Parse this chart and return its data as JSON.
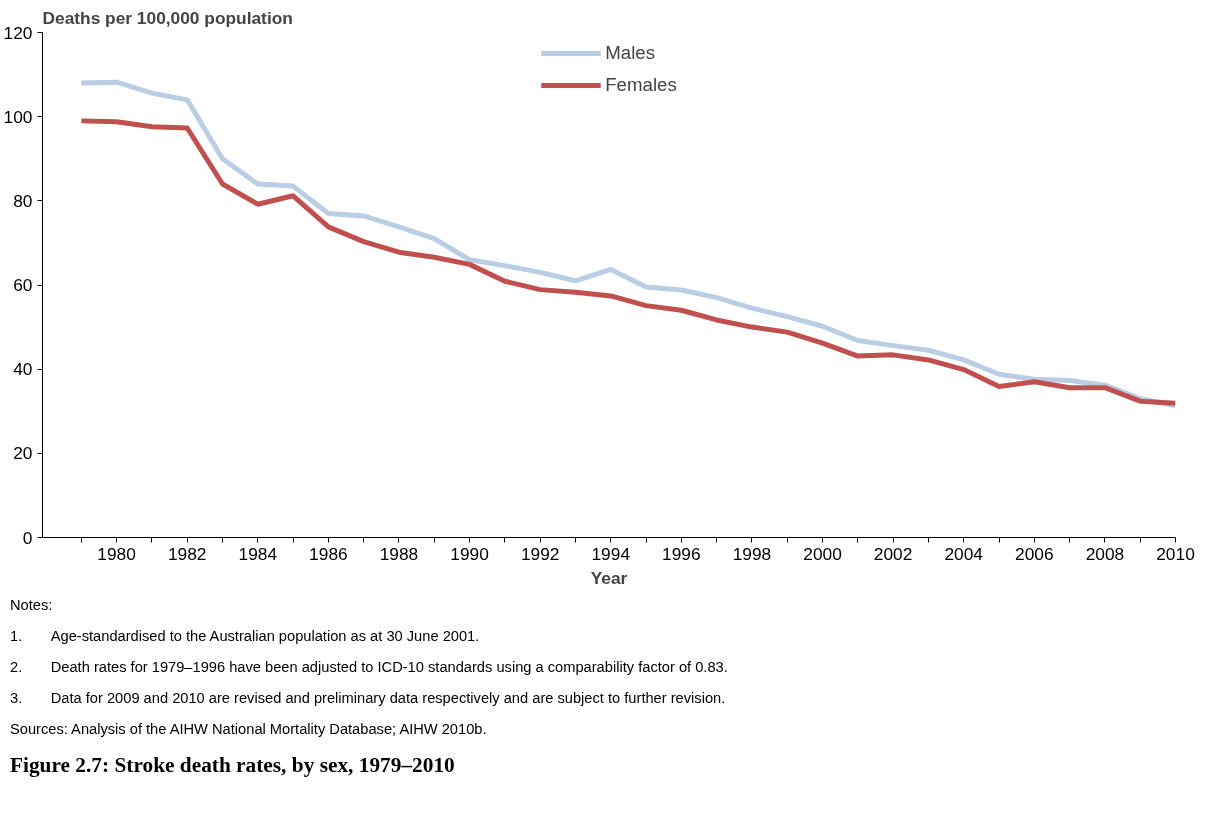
{
  "chart_data": {
    "type": "line",
    "title": "Figure 2.7: Stroke death rates, by sex, 1979–2010",
    "xlabel": "Year",
    "ylabel": "Deaths per 100,000 population",
    "x": [
      1979,
      1980,
      1981,
      1982,
      1983,
      1984,
      1985,
      1986,
      1987,
      1988,
      1989,
      1990,
      1991,
      1992,
      1993,
      1994,
      1995,
      1996,
      1997,
      1998,
      1999,
      2000,
      2001,
      2002,
      2003,
      2004,
      2005,
      2006,
      2007,
      2008,
      2009,
      2010
    ],
    "series": [
      {
        "name": "Males",
        "color": "#b9cde5",
        "values": [
          108,
          108.2,
          105.6,
          104,
          90,
          84,
          83.5,
          77,
          76.4,
          73.8,
          71,
          66,
          64.6,
          63,
          61,
          63.7,
          59.5,
          58.8,
          57,
          54.5,
          52.5,
          50.2,
          46.8,
          45.6,
          44.5,
          42.2,
          38.8,
          37.6,
          37.3,
          36.2,
          33,
          31.3
        ]
      },
      {
        "name": "Females",
        "color": "#c0504d",
        "values": [
          99,
          98.8,
          97.6,
          97.3,
          84,
          79.2,
          81.2,
          73.8,
          70.3,
          67.8,
          66.6,
          64.9,
          60.9,
          58.9,
          58.3,
          57.4,
          55.1,
          54,
          51.7,
          50,
          48.8,
          46.2,
          43.1,
          43.4,
          42.2,
          39.9,
          35.9,
          37,
          35.6,
          35.6,
          32.4,
          31.9
        ]
      }
    ],
    "xlim": [
      1977.9,
      2010
    ],
    "xticks": [
      {
        "value": 1979,
        "label": null
      },
      1980,
      {
        "value": 1981,
        "label": null
      },
      1982,
      {
        "value": 1983,
        "label": null
      },
      1984,
      {
        "value": 1985,
        "label": null
      },
      1986,
      {
        "value": 1987,
        "label": null
      },
      1988,
      {
        "value": 1989,
        "label": null
      },
      1990,
      {
        "value": 1991,
        "label": null
      },
      1992,
      {
        "value": 1993,
        "label": null
      },
      1994,
      {
        "value": 1995,
        "label": null
      },
      1996,
      {
        "value": 1997,
        "label": null
      },
      1998,
      {
        "value": 1999,
        "label": null
      },
      2000,
      {
        "value": 2001,
        "label": null
      },
      2002,
      {
        "value": 2003,
        "label": null
      },
      2004,
      {
        "value": 2005,
        "label": null
      },
      2006,
      {
        "value": 2007,
        "label": null
      },
      2008,
      {
        "value": 2009,
        "label": null
      },
      2010
    ],
    "ylim": [
      0,
      120
    ],
    "yticks": [
      0,
      20,
      40,
      60,
      80,
      100,
      120
    ],
    "grid": false,
    "legend": "top",
    "marker": "none",
    "line_style": "solid",
    "annotations": [
      "Notes:",
      "1.\tAge-standardised to the Australian population as at 30 June 2001.",
      "2.\tDeath rates for 1979–1996 have been adjusted to ICD-10 standards using a comparability factor of 0.83.",
      "3.\tData for 2009 and 2010 are revised and preliminary data respectively and are subject to further revision.",
      "Sources: Analysis of the AIHW National Mortality Database; AIHW 2010b."
    ]
  }
}
